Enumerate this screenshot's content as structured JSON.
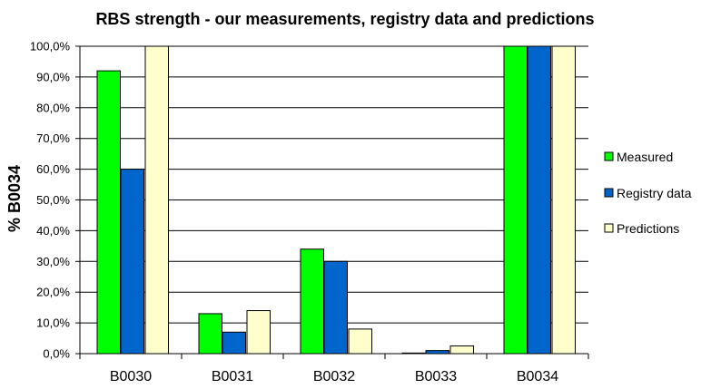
{
  "chart_data": {
    "type": "bar",
    "title": "RBS strength - our measurements, registry data and predictions",
    "xlabel": "",
    "ylabel": "% B0034",
    "categories": [
      "B0030",
      "B0031",
      "B0032",
      "B0033",
      "B0034"
    ],
    "series": [
      {
        "name": "Measured",
        "color": "#00ff00",
        "values": [
          0.92,
          0.13,
          0.34,
          0.002,
          1.0
        ]
      },
      {
        "name": "Registry data",
        "color": "#0066cc",
        "values": [
          0.6,
          0.07,
          0.3,
          0.01,
          1.0
        ]
      },
      {
        "name": "Predictions",
        "color": "#ffffcc",
        "values": [
          1.0,
          0.14,
          0.08,
          0.025,
          1.0
        ]
      }
    ],
    "ylim": [
      0,
      1
    ],
    "yticks": [
      0,
      0.1,
      0.2,
      0.3,
      0.4,
      0.5,
      0.6,
      0.7,
      0.8,
      0.9,
      1.0
    ],
    "ytick_labels": [
      "0,0%",
      "10,0%",
      "20,0%",
      "30,0%",
      "40,0%",
      "50,0%",
      "60,0%",
      "70,0%",
      "80,0%",
      "90,0%",
      "100,0%"
    ],
    "grid": true,
    "legend_position": "right"
  }
}
